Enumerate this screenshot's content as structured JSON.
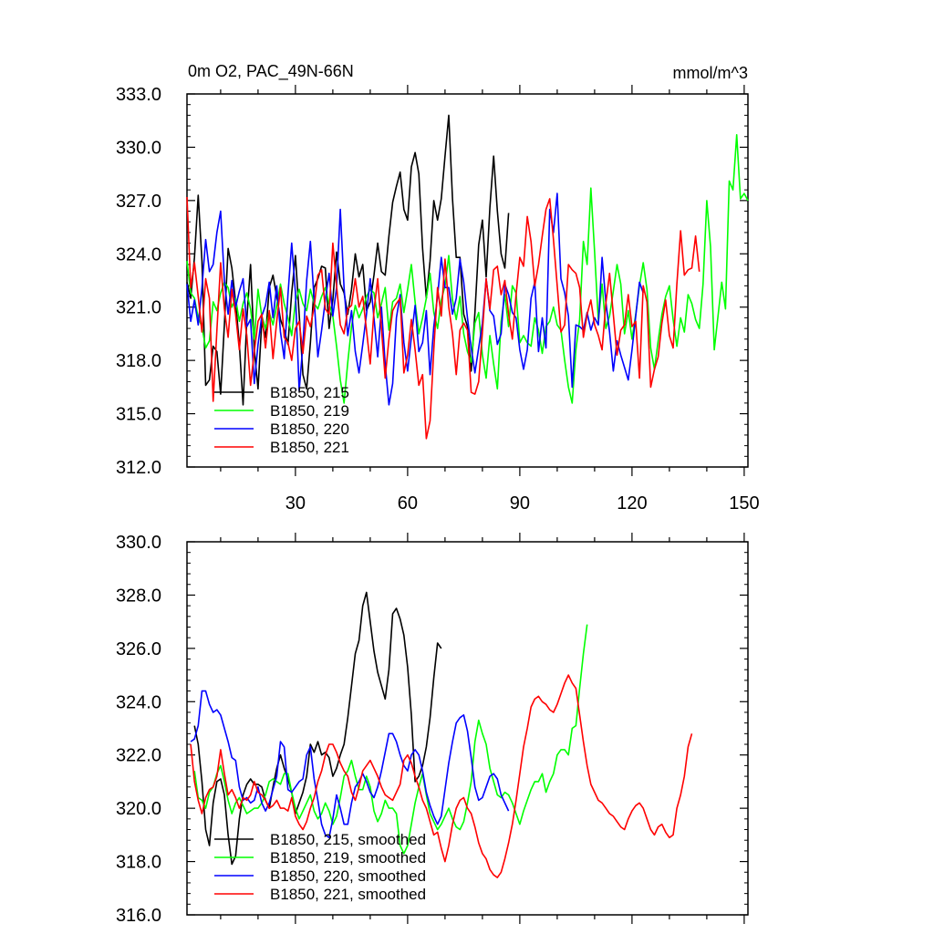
{
  "chart_data": [
    {
      "type": "line",
      "title": "0m O2, PAC_49N-66N",
      "units": "mmol/m^3",
      "xlim": [
        1,
        151
      ],
      "ylim": [
        312,
        333
      ],
      "xticks": [
        30,
        60,
        90,
        120,
        150
      ],
      "yticks": [
        312,
        315,
        318,
        321,
        324,
        327,
        330,
        333
      ],
      "ytick_labels": [
        "312.0",
        "315.0",
        "318.0",
        "321.0",
        "324.0",
        "327.0",
        "330.0",
        "333.0"
      ],
      "grid": false,
      "legend_position": "bottom-left",
      "series": [
        {
          "name": "B1850, 215",
          "color": "#000000",
          "x_start": 1,
          "values": [
            322.4,
            321.5,
            323.8,
            327.3,
            323.6,
            316.6,
            316.9,
            318.8,
            318.5,
            316.1,
            320.0,
            324.3,
            323.2,
            321.3,
            318.9,
            315.5,
            320.3,
            323.4,
            318.6,
            316.4,
            320.2,
            319.3,
            322.1,
            322.8,
            321.6,
            320.3,
            319.7,
            318.9,
            321.8,
            323.9,
            320.6,
            317.2,
            316.4,
            319.0,
            322.1,
            322.6,
            323.3,
            323.2,
            319.8,
            321.4,
            324.1,
            322.3,
            321.8,
            320.6,
            322.0,
            324.0,
            322.7,
            323.4,
            320.8,
            321.3,
            322.8,
            324.6,
            323.0,
            322.8,
            325.0,
            326.9,
            327.8,
            328.6,
            326.5,
            325.9,
            328.9,
            329.7,
            328.5,
            324.3,
            321.5,
            323.6,
            327.0,
            325.9,
            327.1,
            329.5,
            331.8,
            327.1,
            323.8,
            323.8,
            320.6,
            319.9,
            317.4,
            320.7,
            324.5,
            325.9,
            322.7,
            326.6,
            329.5,
            326.4,
            324.0,
            323.2,
            326.3
          ]
        },
        {
          "name": "B1850, 219",
          "color": "#00ff00",
          "x_start": 1,
          "values": [
            323.6,
            321.8,
            321.5,
            320.4,
            319.9,
            318.7,
            319.1,
            321.3,
            320.8,
            321.8,
            322.4,
            322.1,
            321.0,
            321.5,
            320.2,
            321.2,
            321.8,
            320.9,
            319.2,
            322.0,
            320.5,
            319.8,
            320.7,
            320.0,
            321.1,
            322.3,
            321.2,
            320.4,
            319.4,
            321.3,
            322.0,
            321.2,
            320.8,
            322.0,
            321.2,
            320.9,
            321.6,
            322.1,
            321.2,
            320.5,
            318.8,
            316.9,
            315.6,
            317.9,
            319.9,
            321.1,
            320.4,
            320.9,
            321.6,
            322.0,
            321.8,
            320.4,
            321.2,
            322.1,
            319.7,
            321.3,
            321.5,
            322.3,
            320.7,
            322.0,
            323.4,
            321.3,
            319.5,
            320.4,
            321.5,
            322.9,
            320.7,
            319.8,
            321.4,
            322.2,
            323.9,
            321.4,
            320.3,
            321.6,
            319.5,
            318.5,
            317.9,
            320.1,
            320.7,
            318.3,
            317.0,
            319.4,
            317.8,
            316.4,
            320.2,
            321.7,
            319.9,
            322.2,
            321.8,
            319.0,
            319.4,
            319.0,
            318.8,
            320.4,
            319.7,
            318.4,
            319.9,
            320.2,
            321.0,
            320.0,
            319.7,
            318.0,
            316.5,
            315.6,
            318.6,
            320.3,
            324.7,
            323.4,
            327.7,
            324.1,
            320.2,
            322.3,
            319.8,
            320.5,
            321.9,
            323.4,
            322.3,
            319.5,
            320.8,
            319.2,
            320.6,
            322.2,
            323.5,
            322.0,
            318.7,
            317.5,
            319.1,
            320.6,
            321.6,
            322.2,
            320.3,
            318.8,
            320.4,
            319.6,
            321.7,
            321.2,
            320.3,
            319.8,
            322.3,
            327.0,
            324.4,
            318.6,
            320.5,
            322.4,
            320.9,
            328.1,
            327.6,
            330.7,
            327.1,
            327.4,
            327.0
          ]
        },
        {
          "name": "B1850, 220",
          "color": "#0000ff",
          "x_start": 1,
          "values": [
            322.3,
            320.2,
            321.4,
            320.0,
            322.1,
            324.8,
            323.0,
            323.4,
            325.2,
            326.4,
            322.5,
            320.6,
            322.5,
            321.0,
            321.9,
            322.6,
            319.9,
            320.3,
            316.7,
            318.9,
            320.5,
            321.1,
            322.4,
            320.4,
            322.2,
            319.6,
            318.1,
            321.7,
            324.6,
            321.8,
            316.3,
            318.9,
            322.5,
            324.7,
            321.4,
            318.2,
            319.7,
            321.4,
            322.9,
            320.5,
            322.1,
            326.5,
            322.1,
            319.4,
            320.8,
            318.5,
            317.3,
            318.9,
            320.6,
            322.6,
            320.4,
            318.2,
            321.0,
            317.8,
            315.5,
            316.7,
            320.4,
            321.7,
            319.0,
            317.4,
            319.3,
            321.1,
            318.5,
            319.0,
            320.8,
            317.2,
            319.9,
            321.6,
            323.8,
            322.1,
            322.1,
            320.6,
            321.5,
            323.7,
            322.4,
            320.4,
            318.7,
            317.3,
            318.7,
            320.1,
            322.6,
            320.8,
            320.5,
            318.9,
            319.5,
            322.3,
            321.7,
            320.7,
            320.4,
            318.6,
            317.5,
            318.6,
            321.5,
            322.4,
            318.5,
            320.4,
            318.7,
            326.5,
            325.2,
            327.4,
            322.6,
            321.8,
            320.5,
            316.5,
            320.0,
            319.9,
            319.7,
            320.7,
            319.7,
            320.4,
            320.0,
            323.8,
            321.3,
            319.6,
            317.4,
            319.1,
            318.3,
            317.6,
            316.9,
            318.6,
            320.5,
            322.4,
            321.8
          ]
        },
        {
          "name": "B1850, 221",
          "color": "#ff0000",
          "x_start": 1,
          "values": [
            327.2,
            322.1,
            323.5,
            321.6,
            319.6,
            322.6,
            321.5,
            315.7,
            319.7,
            323.5,
            320.9,
            319.3,
            322.0,
            320.6,
            318.6,
            320.9,
            319.4,
            316.6,
            318.5,
            320.2,
            320.6,
            318.7,
            320.8,
            318.1,
            320.2,
            322.1,
            319.3,
            319.0,
            318.0,
            319.8,
            320.2,
            318.4,
            320.5,
            319.9,
            321.0,
            322.8,
            323.1,
            320.9,
            320.6,
            324.6,
            322.2,
            320.0,
            319.5,
            320.9,
            321.1,
            322.6,
            321.0,
            321.6,
            319.7,
            317.8,
            320.8,
            322.6,
            319.8,
            317.0,
            319.2,
            320.8,
            321.2,
            321.5,
            317.3,
            318.3,
            320.3,
            318.6,
            316.6,
            317.2,
            313.6,
            314.6,
            318.6,
            322.1,
            320.5,
            323.7,
            321.0,
            319.5,
            317.2,
            319.7,
            320.1,
            319.7,
            316.2,
            316.1,
            316.8,
            319.6,
            322.6,
            320.9,
            323.1,
            323.3,
            321.7,
            322.5,
            320.6,
            319.2,
            321.7,
            323.8,
            323.3,
            326.1,
            324.7,
            322.2,
            323.4,
            325.0,
            326.5,
            327.1,
            324.8,
            322.2,
            319.6,
            320.0,
            323.4,
            323.1,
            322.9,
            322.1,
            319.3,
            320.6,
            321.4,
            320.0,
            319.4,
            318.6,
            321.2,
            322.9,
            320.6,
            318.3,
            319.7,
            320.0,
            321.7,
            319.9,
            320.2,
            317.0,
            322.2,
            321.3,
            316.5,
            317.5,
            318.2,
            320.1,
            321.4,
            319.4,
            318.7,
            322.3,
            325.3,
            322.8,
            323.1,
            323.2,
            325.0,
            323.0
          ]
        }
      ]
    },
    {
      "type": "line",
      "title": "",
      "units": "",
      "xlim": [
        1,
        151
      ],
      "ylim": [
        316,
        330
      ],
      "xticks": [
        30,
        60,
        90,
        120,
        150
      ],
      "yticks": [
        316,
        318,
        320,
        322,
        324,
        326,
        328,
        330
      ],
      "ytick_labels": [
        "316.0",
        "318.0",
        "320.0",
        "322.0",
        "324.0",
        "326.0",
        "328.0",
        "330.0"
      ],
      "grid": false,
      "legend_position": "bottom-left",
      "series": [
        {
          "name": "B1850, 215, smoothed",
          "color": "#000000",
          "x_start": 3,
          "values": [
            323.1,
            322.4,
            321.0,
            319.2,
            318.6,
            320.2,
            321.0,
            321.1,
            320.5,
            319.0,
            317.9,
            318.2,
            319.6,
            320.5,
            320.9,
            321.1,
            320.9,
            320.9,
            320.8,
            320.3,
            320.0,
            320.8,
            321.5,
            322.0,
            321.5,
            321.1,
            320.6,
            319.8,
            320.2,
            320.6,
            321.2,
            322.4,
            322.1,
            322.5,
            322.0,
            322.1,
            321.9,
            321.2,
            321.5,
            322.0,
            322.4,
            323.4,
            324.6,
            325.8,
            326.3,
            327.6,
            328.1,
            327.0,
            325.9,
            325.1,
            324.6,
            324.1,
            325.2,
            327.3,
            327.5,
            327.1,
            326.5,
            325.3,
            323.5,
            321.0,
            321.2,
            321.6,
            322.3,
            323.4,
            324.9,
            326.2,
            326.0
          ]
        },
        {
          "name": "B1850, 219, smoothed",
          "color": "#00ff00",
          "x_start": 3,
          "values": [
            321.4,
            320.4,
            320.3,
            320.0,
            320.6,
            320.8,
            321.3,
            321.6,
            321.0,
            320.3,
            319.8,
            320.2,
            320.4,
            320.1,
            319.8,
            319.9,
            320.0,
            320.0,
            320.2,
            320.5,
            321.0,
            321.1,
            321.0,
            320.9,
            321.3,
            321.3,
            320.6,
            320.0,
            319.6,
            319.9,
            320.2,
            320.5,
            319.9,
            319.6,
            319.8,
            320.2,
            319.9,
            319.4,
            319.7,
            320.4,
            321.2,
            321.4,
            321.8,
            321.2,
            320.7,
            320.7,
            321.2,
            320.8,
            319.9,
            319.5,
            319.8,
            320.3,
            320.0,
            320.0,
            319.8,
            318.6,
            318.3,
            318.6,
            319.4,
            320.2,
            320.8,
            321.3,
            320.5,
            319.8,
            319.5,
            319.2,
            319.4,
            319.7,
            320.0,
            319.6,
            319.3,
            319.2,
            319.5,
            320.2,
            321.0,
            322.5,
            323.3,
            322.8,
            322.4,
            321.5,
            321.0,
            320.5,
            320.4,
            320.6,
            320.5,
            320.2,
            319.8,
            319.4,
            319.9,
            320.3,
            320.7,
            321.0,
            321.0,
            321.3,
            320.6,
            321.0,
            321.3,
            322.0,
            322.2,
            322.2,
            322.0,
            323.0,
            323.1,
            324.5,
            325.8,
            326.9
          ]
        },
        {
          "name": "B1850, 220, smoothed",
          "color": "#0000ff",
          "x_start": 2,
          "values": [
            322.5,
            322.6,
            323.1,
            324.4,
            324.4,
            323.9,
            323.6,
            323.7,
            323.5,
            323.0,
            322.5,
            321.9,
            321.8,
            320.8,
            320.3,
            320.4,
            320.2,
            320.3,
            320.8,
            320.2,
            319.9,
            320.2,
            320.7,
            321.2,
            322.5,
            322.3,
            320.7,
            320.6,
            320.8,
            321.0,
            321.1,
            322.0,
            322.3,
            321.1,
            320.3,
            319.4,
            319.0,
            318.9,
            319.6,
            320.5,
            320.0,
            319.4,
            319.4,
            320.2,
            320.8,
            321.0,
            321.3,
            321.0,
            320.6,
            320.4,
            320.8,
            321.4,
            322.1,
            322.8,
            322.8,
            322.5,
            322.0,
            321.6,
            321.4,
            322.0,
            322.2,
            322.0,
            321.4,
            320.6,
            320.1,
            319.7,
            319.4,
            319.7,
            320.7,
            321.7,
            322.5,
            323.2,
            323.4,
            323.5,
            322.9,
            321.9,
            320.8,
            320.3,
            320.4,
            320.8,
            321.2,
            321.3,
            321.1,
            320.5,
            320.2,
            319.9
          ]
        },
        {
          "name": "B1850, 221, smoothed",
          "color": "#ff0000",
          "x_start": 2,
          "values": [
            322.4,
            321.0,
            320.3,
            319.8,
            320.4,
            320.7,
            320.8,
            321.2,
            322.2,
            321.3,
            320.5,
            320.7,
            320.4,
            320.0,
            320.4,
            320.3,
            320.5,
            321.0,
            320.6,
            320.5,
            320.3,
            320.0,
            320.1,
            320.3,
            320.0,
            320.0,
            319.9,
            320.4,
            319.7,
            319.4,
            319.2,
            319.5,
            320.0,
            320.4,
            321.0,
            321.4,
            322.0,
            322.4,
            322.4,
            322.1,
            321.7,
            321.4,
            321.2,
            320.6,
            320.3,
            320.8,
            321.4,
            321.6,
            321.8,
            321.5,
            321.2,
            320.8,
            320.5,
            320.4,
            320.3,
            320.6,
            320.9,
            321.8,
            322.0,
            321.7,
            321.2,
            320.8,
            320.3,
            320.0,
            319.5,
            319.0,
            319.1,
            318.5,
            318.0,
            318.6,
            319.4,
            320.0,
            320.3,
            320.4,
            320.0,
            319.8,
            319.3,
            318.7,
            318.3,
            318.1,
            317.7,
            317.5,
            317.4,
            317.6,
            318.1,
            318.7,
            319.4,
            320.3,
            321.3,
            322.3,
            323.0,
            323.8,
            324.1,
            324.2,
            324.0,
            323.9,
            323.7,
            323.6,
            323.9,
            324.3,
            324.7,
            325.0,
            324.7,
            324.5,
            323.5,
            322.5,
            321.6,
            320.9,
            320.6,
            320.3,
            320.2,
            320.0,
            319.8,
            319.7,
            319.5,
            319.3,
            319.2,
            319.6,
            319.9,
            320.1,
            320.2,
            320.0,
            319.6,
            319.2,
            319.0,
            319.3,
            319.4,
            319.1,
            318.9,
            319.0,
            320.0,
            320.5,
            321.2,
            322.3,
            322.8
          ]
        }
      ]
    }
  ]
}
